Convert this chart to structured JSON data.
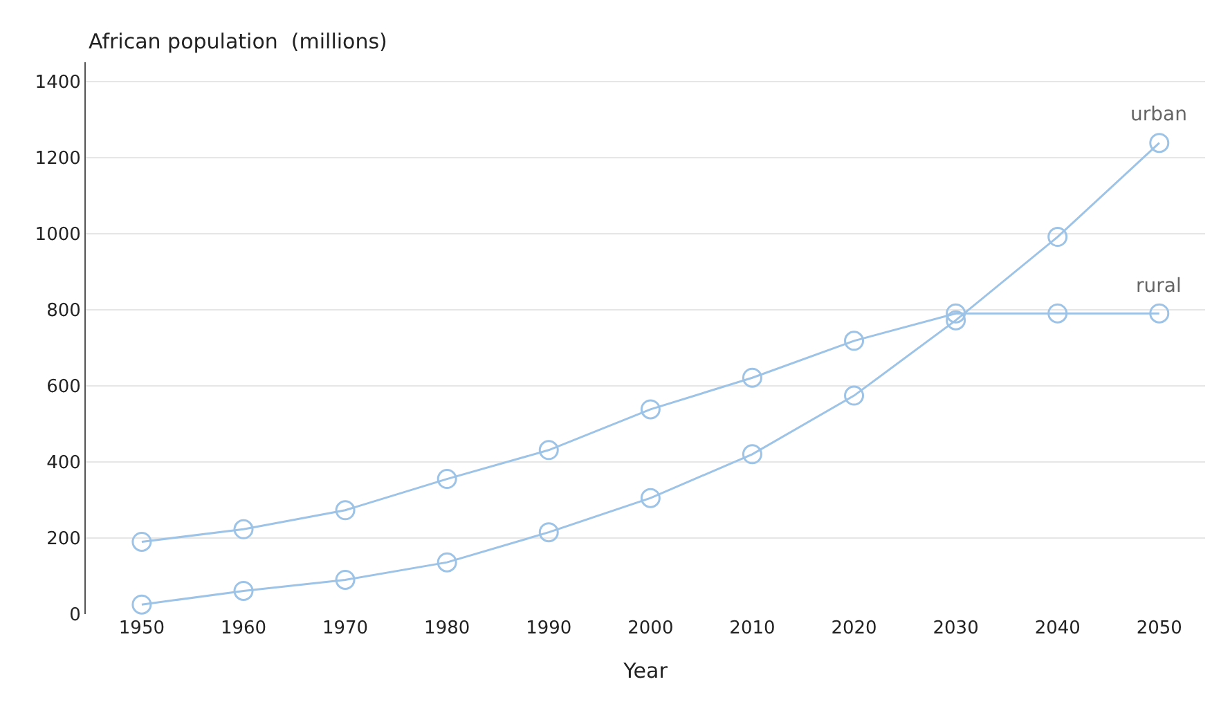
{
  "chart_data": {
    "type": "line",
    "ylabel": "African population  (millions)",
    "xlabel": "Year",
    "categories": [
      "1950",
      "1960",
      "1970",
      "1980",
      "1990",
      "2000",
      "2010",
      "2020",
      "2030",
      "2040",
      "2050"
    ],
    "series": [
      {
        "name": "urban",
        "color": "#9dc3e6",
        "values": [
          25,
          61,
          90,
          136,
          215,
          305,
          420,
          574,
          772,
          991,
          1238
        ]
      },
      {
        "name": "rural",
        "color": "#9dc3e6",
        "values": [
          190,
          223,
          273,
          355,
          431,
          538,
          621,
          718,
          790,
          790,
          790
        ]
      }
    ],
    "ylim": [
      0,
      1450
    ],
    "yticks": [
      0,
      200,
      400,
      600,
      800,
      1000,
      1200,
      1400
    ],
    "grid": "y",
    "marker": "circle",
    "line_style": "solid",
    "legend": false
  }
}
